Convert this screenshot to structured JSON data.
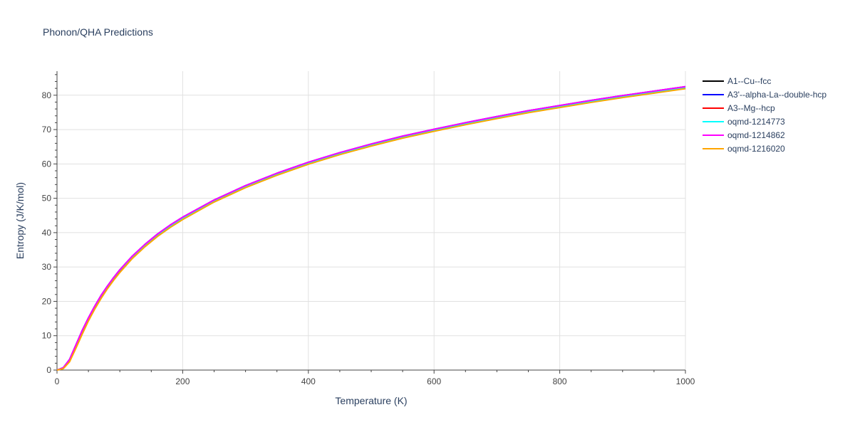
{
  "chart_data": {
    "type": "line",
    "title": "Phonon/QHA Predictions",
    "xlabel": "Temperature (K)",
    "ylabel": "Entropy (J/K/mol)",
    "xlim": [
      0,
      1000
    ],
    "ylim": [
      0,
      87
    ],
    "xticks": [
      0,
      200,
      400,
      600,
      800,
      1000
    ],
    "yticks": [
      0,
      10,
      20,
      30,
      40,
      50,
      60,
      70,
      80
    ],
    "grid": true,
    "legend_position": "right",
    "x": [
      0,
      10,
      20,
      30,
      40,
      50,
      60,
      70,
      80,
      90,
      100,
      120,
      140,
      160,
      180,
      200,
      250,
      300,
      350,
      400,
      450,
      500,
      550,
      600,
      650,
      700,
      750,
      800,
      850,
      900,
      950,
      1000
    ],
    "series": [
      {
        "name": "A1--Cu--fcc",
        "color": "#000000",
        "values": [
          0,
          0.6,
          3.0,
          7.0,
          11.0,
          14.8,
          18.2,
          21.3,
          24.0,
          26.5,
          28.8,
          32.8,
          36.2,
          39.1,
          41.7,
          44.0,
          49.0,
          53.2,
          56.8,
          60.0,
          62.8,
          65.3,
          67.6,
          69.6,
          71.5,
          73.3,
          75.0,
          76.5,
          78.0,
          79.4,
          80.7,
          82.0
        ]
      },
      {
        "name": "A3'--alpha-La--double-hcp",
        "color": "#0000ff",
        "values": [
          0,
          0.7,
          3.1,
          7.3,
          11.5,
          15.2,
          18.6,
          21.7,
          24.4,
          26.9,
          29.2,
          33.2,
          36.6,
          39.6,
          42.2,
          44.5,
          49.5,
          53.7,
          57.3,
          60.5,
          63.3,
          65.8,
          68.1,
          70.1,
          72.0,
          73.8,
          75.5,
          77.0,
          78.5,
          79.9,
          81.2,
          82.5
        ]
      },
      {
        "name": "A3--Mg--hcp",
        "color": "#ff0000",
        "values": [
          0,
          0.6,
          3.0,
          7.0,
          11.0,
          14.8,
          18.2,
          21.3,
          24.0,
          26.5,
          28.8,
          32.8,
          36.2,
          39.1,
          41.7,
          44.0,
          49.0,
          53.2,
          56.8,
          60.0,
          62.8,
          65.3,
          67.6,
          69.6,
          71.5,
          73.3,
          75.0,
          76.5,
          78.0,
          79.4,
          80.7,
          82.0
        ]
      },
      {
        "name": "oqmd-1214773",
        "color": "#00ffff",
        "values": [
          0,
          0.7,
          3.1,
          7.2,
          11.4,
          15.1,
          18.5,
          21.6,
          24.3,
          26.8,
          29.1,
          33.0,
          36.4,
          39.4,
          41.9,
          44.2,
          49.2,
          53.4,
          57.0,
          60.2,
          63.0,
          65.5,
          67.8,
          69.8,
          71.7,
          73.5,
          75.2,
          76.7,
          78.2,
          79.6,
          80.9,
          82.2
        ]
      },
      {
        "name": "oqmd-1214862",
        "color": "#ff00ff",
        "values": [
          0,
          0.7,
          3.1,
          7.3,
          11.5,
          15.2,
          18.6,
          21.7,
          24.4,
          26.9,
          29.2,
          33.2,
          36.6,
          39.6,
          42.2,
          44.5,
          49.5,
          53.7,
          57.3,
          60.5,
          63.3,
          65.8,
          68.1,
          70.1,
          72.0,
          73.8,
          75.5,
          77.0,
          78.5,
          79.9,
          81.2,
          82.5
        ]
      },
      {
        "name": "oqmd-1216020",
        "color": "#ffa500",
        "values": [
          0,
          0.4,
          2.4,
          6.3,
          10.4,
          14.3,
          17.7,
          20.8,
          23.6,
          26.1,
          28.4,
          32.5,
          35.9,
          38.9,
          41.5,
          43.8,
          48.9,
          53.1,
          56.7,
          59.9,
          62.7,
          65.2,
          67.5,
          69.5,
          71.4,
          73.2,
          74.9,
          76.4,
          77.9,
          79.3,
          80.6,
          81.9
        ]
      }
    ]
  }
}
